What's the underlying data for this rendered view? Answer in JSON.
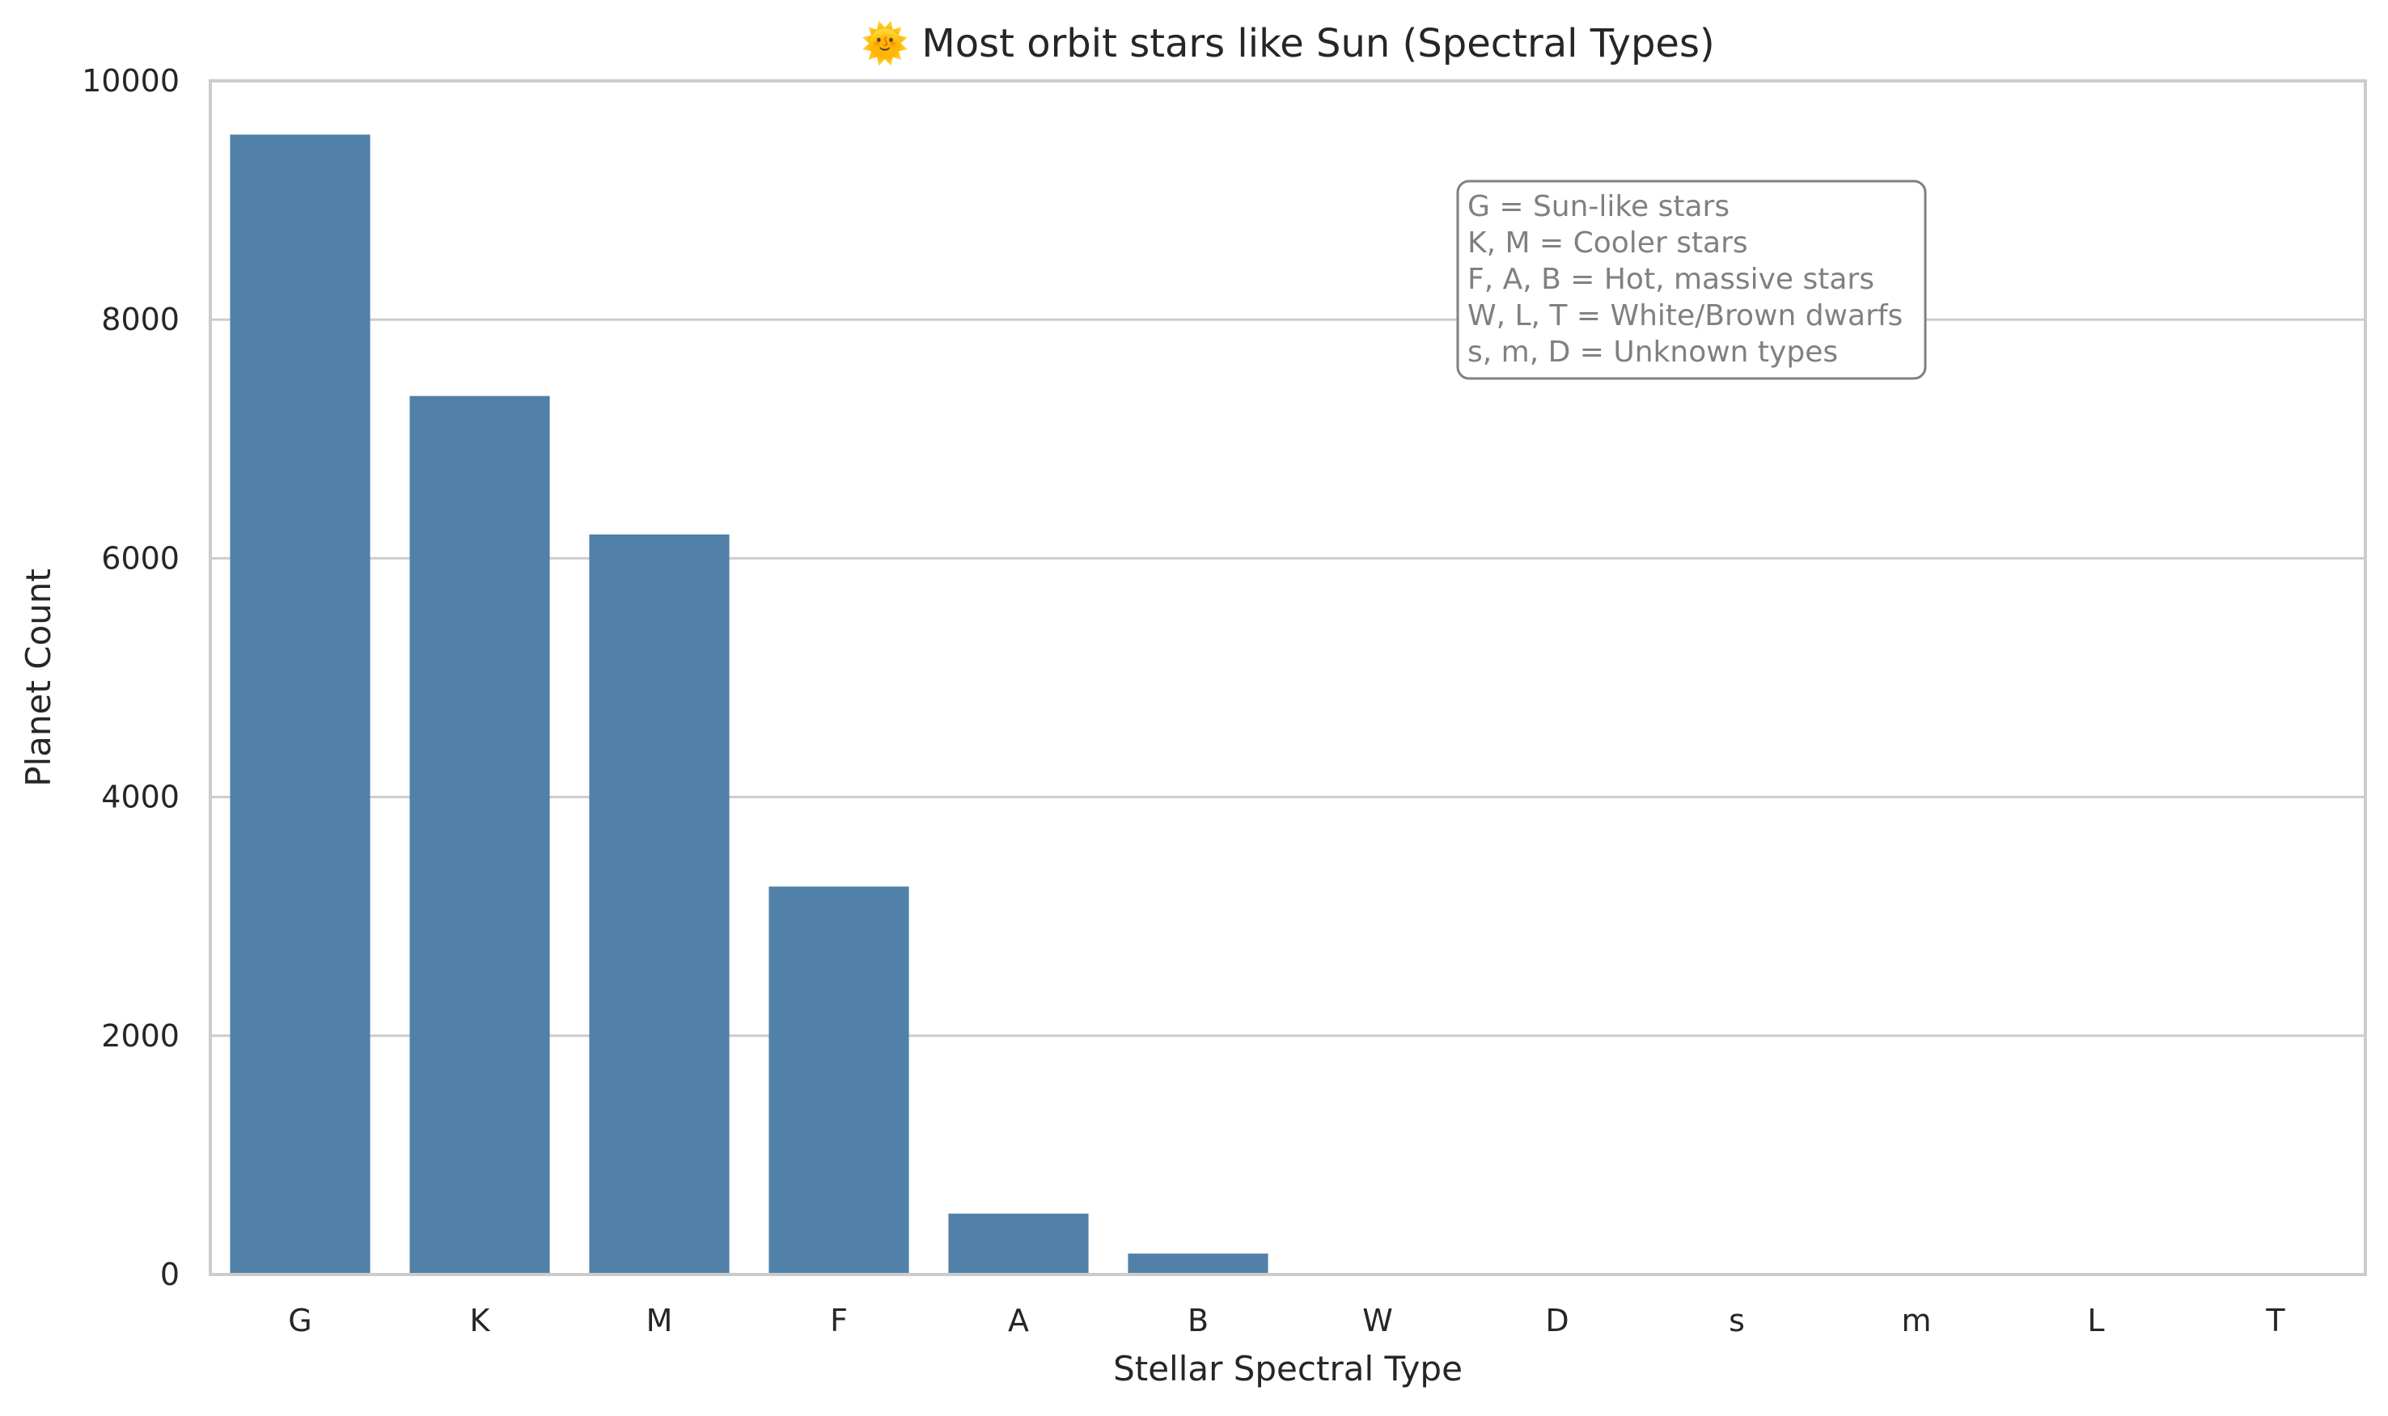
{
  "chart_data": {
    "type": "bar",
    "title": "🌞 Most orbit stars like Sun (Spectral Types)",
    "xlabel": "Stellar Spectral Type",
    "ylabel": "Planet Count",
    "categories": [
      "G",
      "K",
      "M",
      "F",
      "A",
      "B",
      "W",
      "D",
      "s",
      "m",
      "L",
      "T"
    ],
    "values": [
      9550,
      7360,
      6200,
      3250,
      510,
      175,
      8,
      6,
      5,
      4,
      3,
      2
    ],
    "ylim": [
      0,
      10000
    ],
    "yticks": [
      0,
      2000,
      4000,
      6000,
      8000,
      10000
    ],
    "grid": "horizontal",
    "bar_color": "#5181a8",
    "annotation": {
      "lines": [
        "G = Sun-like stars",
        "K, M = Cooler stars",
        "F, A, B = Hot, massive stars",
        "W, L, T = White/Brown dwarfs",
        "s, m, D = Unknown types"
      ],
      "placement": "top-right"
    }
  }
}
